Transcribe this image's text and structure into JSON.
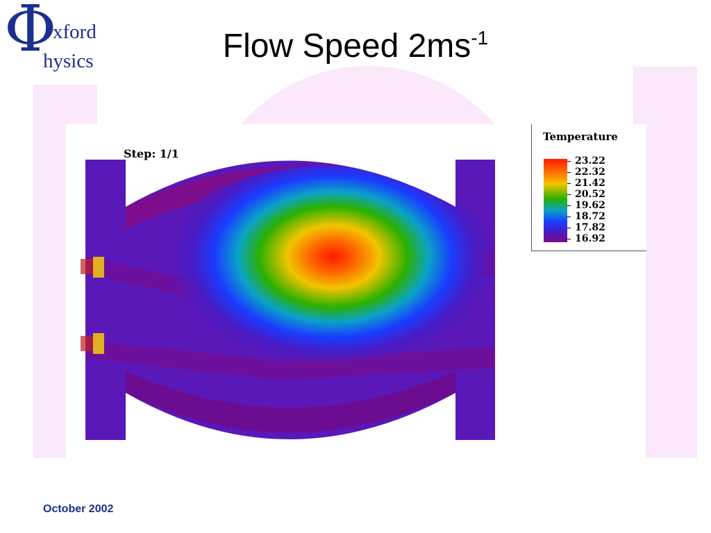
{
  "logo": {
    "symbol": "Φ",
    "line1": "xford",
    "line2": "hysics",
    "color": "#1b2f8e"
  },
  "slide": {
    "title": "Flow Speed 2ms",
    "title_superscript": "-1",
    "footer": "October 2002"
  },
  "simulation": {
    "step_label": "Step: 1/1",
    "legend_title": "Temperature",
    "legend_values": [
      "23.22",
      "22.32",
      "21.42",
      "20.52",
      "19.62",
      "18.72",
      "17.82",
      "16.92"
    ],
    "colormap": [
      "#ff1a00",
      "#ff6a00",
      "#f2c400",
      "#2bb000",
      "#0aa2c8",
      "#1a3cff",
      "#4a1ac2",
      "#7a0a8a"
    ]
  }
}
